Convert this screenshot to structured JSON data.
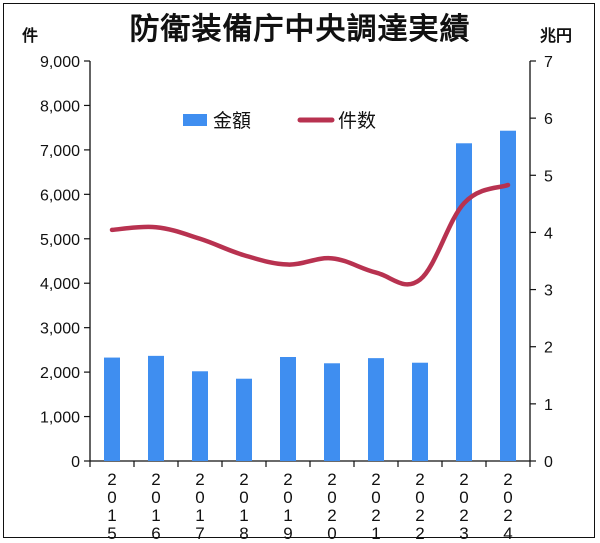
{
  "chart_data": {
    "type": "bar+line",
    "title": "防衛装備庁中央調達実績",
    "left_axis_unit": "件",
    "right_axis_unit": "兆円",
    "categories": [
      "2015",
      "2016",
      "2017",
      "2018",
      "2019",
      "2020",
      "2021",
      "2022",
      "2023",
      "2024"
    ],
    "series": [
      {
        "name": "金額",
        "type": "bar",
        "axis": "right",
        "color": "#3f8ef0",
        "values": [
          1.81,
          1.84,
          1.57,
          1.44,
          1.82,
          1.71,
          1.8,
          1.72,
          5.56,
          5.78
        ]
      },
      {
        "name": "件数",
        "type": "line",
        "axis": "left",
        "color": "#b83250",
        "values": [
          5200,
          5260,
          5000,
          4630,
          4420,
          4560,
          4240,
          4080,
          5800,
          6210
        ]
      }
    ],
    "left_axis": {
      "ylim": [
        0,
        9000
      ],
      "ticks": [
        "0",
        "1,000",
        "2,000",
        "3,000",
        "4,000",
        "5,000",
        "6,000",
        "7,000",
        "8,000",
        "9,000"
      ]
    },
    "right_axis": {
      "ylim": [
        0,
        7
      ],
      "ticks": [
        "0",
        "1",
        "2",
        "3",
        "4",
        "5",
        "6",
        "7"
      ]
    },
    "legend": {
      "position": "top-center"
    },
    "grid": false
  }
}
